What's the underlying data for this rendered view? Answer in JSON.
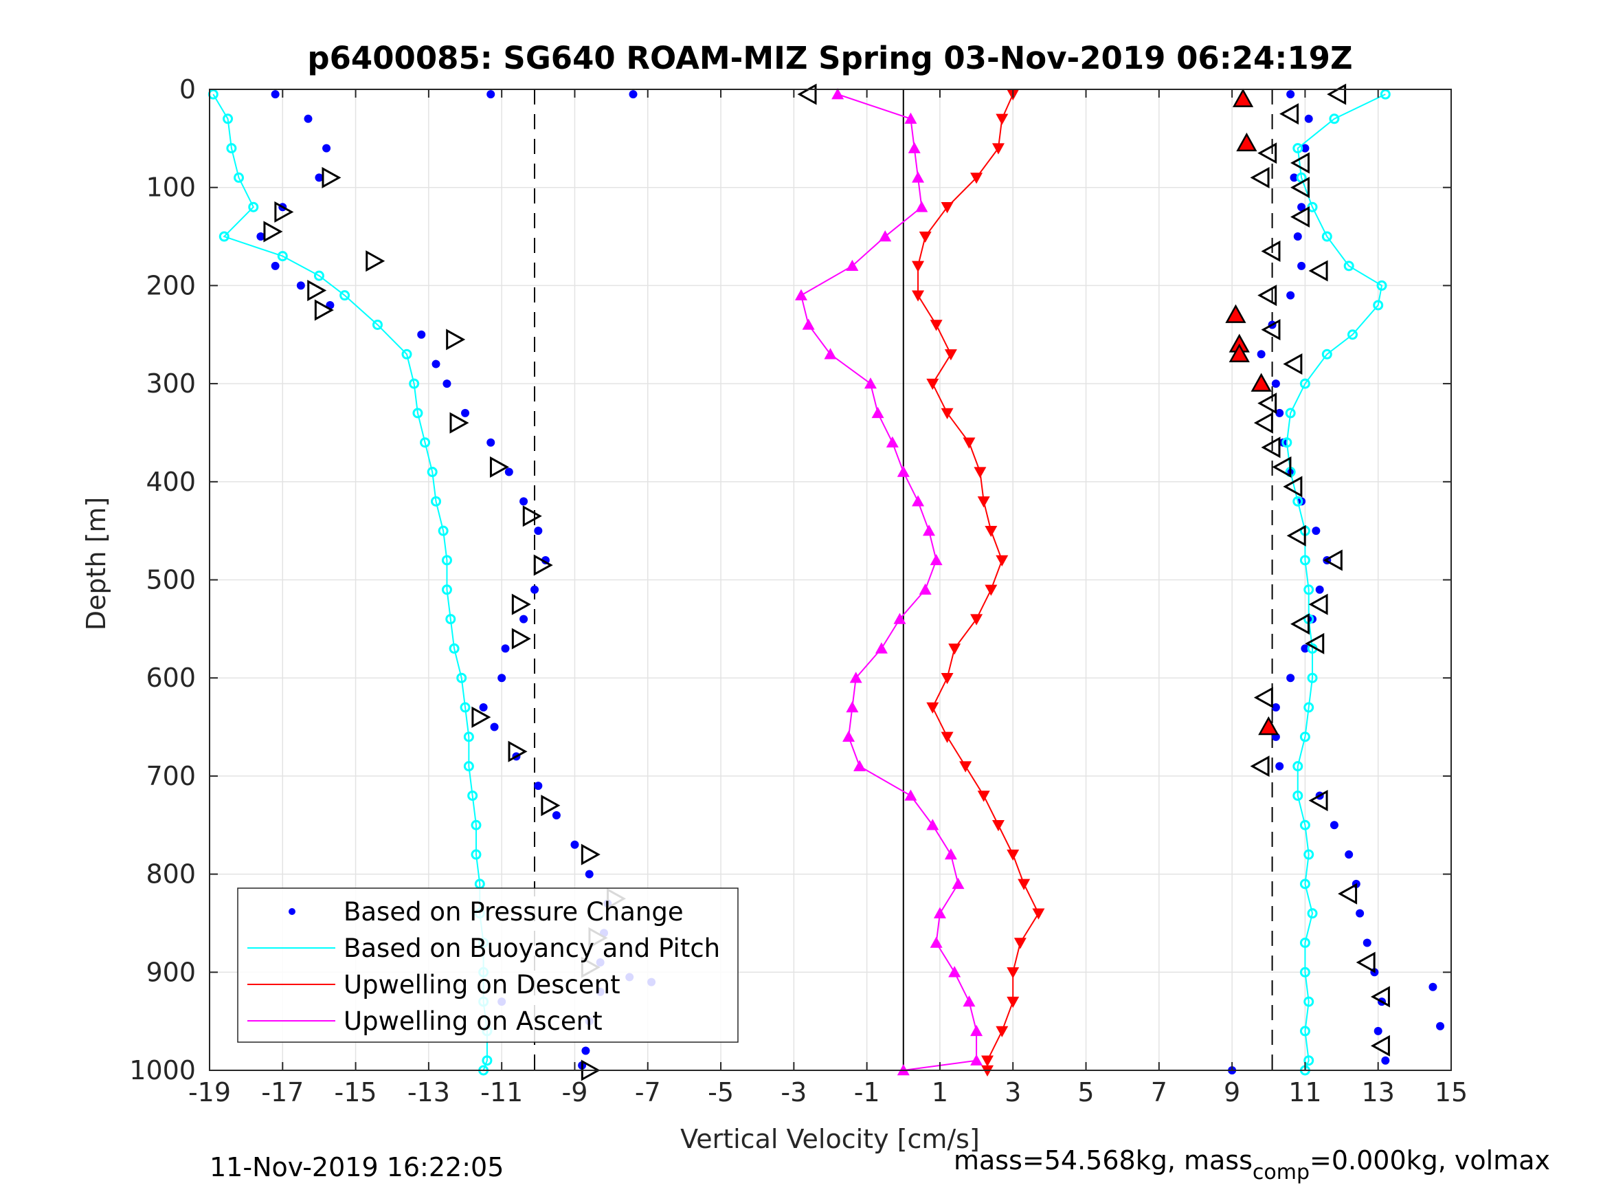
{
  "chart_data": {
    "type": "scatter",
    "title": "p6400085: SG640 ROAM-MIZ Spring 03-Nov-2019 06:24:19Z",
    "xlabel": "Vertical Velocity [cm/s]",
    "ylabel": "Depth [m]",
    "xlim": [
      -19,
      15
    ],
    "ylim": [
      0,
      1000
    ],
    "y_reversed": true,
    "x_ticks": [
      -19,
      -17,
      -15,
      -13,
      -11,
      -9,
      -7,
      -5,
      -3,
      -1,
      1,
      3,
      5,
      7,
      9,
      11,
      13,
      15
    ],
    "y_ticks": [
      0,
      100,
      200,
      300,
      400,
      500,
      600,
      700,
      800,
      900,
      1000
    ],
    "grid": true,
    "legend_position": "bottom-left",
    "reference_lines": [
      {
        "style": "dashed",
        "x": -10.1
      },
      {
        "style": "solid",
        "x": 0.0
      },
      {
        "style": "dashed",
        "x": 10.1
      }
    ],
    "series": [
      {
        "name": "Based on Pressure Change",
        "color": "#0000ff",
        "marker": "dot",
        "segments": [
          {
            "depth": [
              5,
              30,
              60,
              90,
              120,
              150,
              180,
              200,
              220,
              250,
              280,
              300,
              330,
              360,
              390,
              420,
              450,
              480,
              510,
              540,
              570,
              600,
              630,
              650,
              680,
              710,
              740,
              770,
              800,
              830,
              860,
              890,
              920,
              950,
              980,
              995
            ],
            "x": [
              -17.2,
              -16.3,
              -15.8,
              -16.0,
              -17.0,
              -17.6,
              -17.2,
              -16.5,
              -15.7,
              -13.2,
              -12.8,
              -12.5,
              -12.0,
              -11.3,
              -10.8,
              -10.4,
              -10.0,
              -9.8,
              -10.1,
              -10.4,
              -10.9,
              -11.0,
              -11.5,
              -11.2,
              -10.6,
              -10.0,
              -9.5,
              -9.0,
              -8.6,
              -8.1,
              -8.2,
              -8.3,
              -8.3,
              -8.6,
              -8.7,
              -8.8
            ]
          },
          {
            "depth": [
              5,
              30,
              60,
              90,
              120,
              150,
              180,
              210,
              240,
              270,
              300,
              330,
              360,
              390,
              420,
              450,
              480,
              510,
              540,
              570,
              600,
              630,
              660,
              690,
              720,
              750,
              780,
              810,
              840,
              870,
              900,
              930,
              960,
              990
            ],
            "x": [
              10.6,
              11.1,
              11.0,
              10.7,
              10.9,
              10.8,
              10.9,
              10.6,
              10.1,
              9.8,
              10.2,
              10.3,
              10.4,
              10.6,
              10.9,
              11.3,
              11.6,
              11.4,
              11.2,
              11.0,
              10.6,
              10.2,
              10.2,
              10.3,
              11.4,
              11.8,
              12.2,
              12.4,
              12.5,
              12.7,
              12.9,
              13.1,
              13.0,
              13.2
            ]
          }
        ]
      },
      {
        "name": "Based on Buoyancy and Pitch",
        "color": "#00ffff",
        "marker": "circle-line",
        "segments": [
          {
            "depth": [
              5,
              30,
              60,
              90,
              120,
              150,
              170,
              190,
              210,
              240,
              270,
              300,
              330,
              360,
              390,
              420,
              450,
              480,
              510,
              540,
              570,
              600,
              630,
              660,
              690,
              720,
              750,
              780,
              810,
              840,
              870,
              900,
              930,
              960,
              990,
              1000
            ],
            "x": [
              -18.9,
              -18.5,
              -18.4,
              -18.2,
              -17.8,
              -18.6,
              -17.0,
              -16.0,
              -15.3,
              -14.4,
              -13.6,
              -13.4,
              -13.3,
              -13.1,
              -12.9,
              -12.8,
              -12.6,
              -12.5,
              -12.5,
              -12.4,
              -12.3,
              -12.1,
              -12.0,
              -11.9,
              -11.9,
              -11.8,
              -11.7,
              -11.7,
              -11.6,
              -11.6,
              -11.5,
              -11.5,
              -11.5,
              -11.4,
              -11.4,
              -11.5
            ]
          },
          {
            "depth": [
              5,
              30,
              60,
              90,
              120,
              150,
              180,
              200,
              220,
              250,
              270,
              300,
              330,
              360,
              390,
              420,
              450,
              480,
              510,
              540,
              570,
              600,
              630,
              660,
              690,
              720,
              750,
              780,
              810,
              840,
              870,
              900,
              930,
              960,
              990,
              1000
            ],
            "x": [
              13.2,
              11.8,
              10.8,
              10.9,
              11.2,
              11.6,
              12.2,
              13.1,
              13.0,
              12.3,
              11.6,
              11.0,
              10.6,
              10.5,
              10.6,
              10.8,
              11.0,
              11.0,
              11.1,
              11.1,
              11.2,
              11.2,
              11.1,
              11.0,
              10.8,
              10.8,
              11.0,
              11.1,
              11.0,
              11.2,
              11.0,
              11.0,
              11.1,
              11.0,
              11.1,
              11.0
            ]
          }
        ]
      },
      {
        "name": "Upwelling on Descent",
        "color": "#ff0000",
        "marker": "triangle-down-line",
        "segments": [
          {
            "depth": [
              5,
              30,
              60,
              90,
              120,
              150,
              180,
              210,
              240,
              270,
              300,
              330,
              360,
              390,
              420,
              450,
              480,
              510,
              540,
              570,
              600,
              630,
              660,
              690,
              720,
              750,
              780,
              810,
              840,
              870,
              900,
              930,
              960,
              990,
              1000
            ],
            "x": [
              3.0,
              2.7,
              2.6,
              2.0,
              1.2,
              0.6,
              0.4,
              0.4,
              0.9,
              1.3,
              0.8,
              1.2,
              1.8,
              2.1,
              2.2,
              2.4,
              2.7,
              2.4,
              2.0,
              1.4,
              1.2,
              0.8,
              1.2,
              1.7,
              2.2,
              2.6,
              3.0,
              3.3,
              3.7,
              3.2,
              3.0,
              3.0,
              2.7,
              2.3,
              2.3
            ]
          }
        ]
      },
      {
        "name": "Upwelling on Ascent",
        "color": "#ff00ff",
        "marker": "triangle-up-line",
        "segments": [
          {
            "depth": [
              5,
              30,
              60,
              90,
              120,
              150,
              180,
              210,
              240,
              270,
              300,
              330,
              360,
              390,
              420,
              450,
              480,
              510,
              540,
              570,
              600,
              630,
              660,
              690,
              720,
              750,
              780,
              810,
              840,
              870,
              900,
              930,
              960,
              990,
              1000
            ],
            "x": [
              -1.8,
              0.2,
              0.3,
              0.4,
              0.5,
              -0.5,
              -1.4,
              -2.8,
              -2.6,
              -2.0,
              -0.9,
              -0.7,
              -0.3,
              0.0,
              0.4,
              0.7,
              0.9,
              0.6,
              -0.1,
              -0.6,
              -1.3,
              -1.4,
              -1.5,
              -1.2,
              0.2,
              0.8,
              1.3,
              1.5,
              1.0,
              0.9,
              1.4,
              1.8,
              2.0,
              2.0,
              0.0
            ]
          }
        ]
      }
    ],
    "markers": {
      "descent_outlined_triangles": [
        [
          -15.7,
          90
        ],
        [
          -17.0,
          125
        ],
        [
          -17.3,
          145
        ],
        [
          -14.5,
          175
        ],
        [
          -16.1,
          205
        ],
        [
          -15.9,
          225
        ],
        [
          -12.3,
          255
        ],
        [
          -12.2,
          340
        ],
        [
          -11.1,
          385
        ],
        [
          -10.2,
          435
        ],
        [
          -9.9,
          485
        ],
        [
          -10.5,
          525
        ],
        [
          -10.5,
          560
        ],
        [
          -11.6,
          640
        ],
        [
          -10.6,
          675
        ],
        [
          -9.7,
          730
        ],
        [
          -8.6,
          780
        ],
        [
          -7.9,
          825
        ],
        [
          -8.4,
          865
        ],
        [
          -8.6,
          895
        ],
        [
          -8.6,
          1000
        ]
      ],
      "ascent_outlined_triangles": [
        [
          -2.6,
          5
        ],
        [
          11.9,
          5
        ],
        [
          10.6,
          25
        ],
        [
          10.0,
          65
        ],
        [
          10.9,
          75
        ],
        [
          9.8,
          90
        ],
        [
          10.9,
          100
        ],
        [
          10.9,
          130
        ],
        [
          10.1,
          165
        ],
        [
          11.4,
          185
        ],
        [
          10.0,
          210
        ],
        [
          10.1,
          245
        ],
        [
          10.7,
          280
        ],
        [
          10.0,
          320
        ],
        [
          9.9,
          340
        ],
        [
          10.1,
          365
        ],
        [
          10.4,
          385
        ],
        [
          10.7,
          405
        ],
        [
          10.8,
          455
        ],
        [
          11.8,
          480
        ],
        [
          11.4,
          525
        ],
        [
          10.9,
          545
        ],
        [
          11.3,
          565
        ],
        [
          9.9,
          620
        ],
        [
          9.8,
          690
        ],
        [
          11.4,
          725
        ],
        [
          12.2,
          820
        ],
        [
          12.7,
          890
        ],
        [
          13.1,
          925
        ],
        [
          13.1,
          975
        ]
      ],
      "red_filled_markers": [
        [
          9.3,
          10
        ],
        [
          9.4,
          55
        ],
        [
          9.1,
          230
        ],
        [
          9.2,
          260
        ],
        [
          9.2,
          270
        ],
        [
          9.8,
          300
        ],
        [
          10.0,
          650
        ]
      ],
      "outliers": [
        [
          -11.3,
          5
        ],
        [
          -7.4,
          5
        ],
        [
          -11.0,
          930
        ],
        [
          -7.5,
          905
        ],
        [
          -6.9,
          910
        ],
        [
          9.0,
          1000
        ],
        [
          14.5,
          915
        ],
        [
          14.7,
          955
        ]
      ]
    }
  },
  "footer": {
    "date_left": "11-Nov-2019 16:22:05",
    "mass_text": "mass=54.568kg, mass",
    "mass_sub": "comp",
    "mass_tail": "=0.000kg, volmax"
  }
}
